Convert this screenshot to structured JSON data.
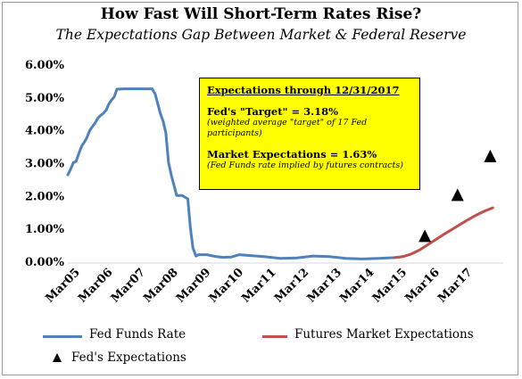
{
  "chart_data": {
    "type": "line",
    "title": "How Fast Will Short-Term Rates Rise?",
    "subtitle": "The Expectations Gap Between Market & Federal Reserve",
    "yticks": [
      "0.00%",
      "1.00%",
      "2.00%",
      "3.00%",
      "4.00%",
      "5.00%",
      "6.00%"
    ],
    "ylim": [
      0,
      6
    ],
    "xticks": [
      "Mar05",
      "Mar06",
      "Mar07",
      "Mar08",
      "Mar09",
      "Mar10",
      "Mar11",
      "Mar12",
      "Mar13",
      "Mar14",
      "Mar15",
      "Mar16",
      "Mar17"
    ],
    "xlim": [
      2005.0,
      2018.1
    ],
    "grid": false,
    "legend_position": "bottom",
    "series": [
      {
        "name": "Fed Funds Rate",
        "color": "#4f81bd",
        "x": [
          2005.0,
          2005.08,
          2005.17,
          2005.25,
          2005.33,
          2005.42,
          2005.5,
          2005.58,
          2005.67,
          2005.75,
          2005.83,
          2005.92,
          2006.0,
          2006.08,
          2006.17,
          2006.25,
          2006.33,
          2006.42,
          2006.5,
          2006.75,
          2007.0,
          2007.25,
          2007.5,
          2007.58,
          2007.67,
          2007.75,
          2007.83,
          2007.92,
          2008.0,
          2008.08,
          2008.17,
          2008.25,
          2008.33,
          2008.5,
          2008.67,
          2008.75,
          2008.83,
          2008.92,
          2009.0,
          2009.25,
          2009.5,
          2009.75,
          2010.0,
          2010.25,
          2010.5,
          2011.0,
          2011.5,
          2012.0,
          2012.5,
          2013.0,
          2013.5,
          2014.0,
          2014.5,
          2015.0
        ],
        "values": [
          2.63,
          2.79,
          3.0,
          3.04,
          3.26,
          3.5,
          3.62,
          3.76,
          3.98,
          4.1,
          4.2,
          4.36,
          4.44,
          4.5,
          4.6,
          4.78,
          4.9,
          5.0,
          5.24,
          5.25,
          5.25,
          5.25,
          5.25,
          5.25,
          5.1,
          4.8,
          4.5,
          4.25,
          3.9,
          3.0,
          2.6,
          2.3,
          2.0,
          2.0,
          1.9,
          1.0,
          0.4,
          0.16,
          0.2,
          0.2,
          0.15,
          0.12,
          0.13,
          0.2,
          0.18,
          0.14,
          0.09,
          0.1,
          0.16,
          0.14,
          0.09,
          0.07,
          0.09,
          0.11
        ]
      },
      {
        "name": "Futures Market Expectations",
        "color": "#c0504d",
        "x": [
          2015.0,
          2015.25,
          2015.5,
          2015.75,
          2016.0,
          2016.25,
          2016.5,
          2016.75,
          2017.0,
          2017.25,
          2017.5,
          2017.75,
          2018.0
        ],
        "values": [
          0.11,
          0.14,
          0.22,
          0.34,
          0.5,
          0.66,
          0.82,
          0.97,
          1.12,
          1.27,
          1.41,
          1.53,
          1.63
        ]
      },
      {
        "name": "Fed's Expectations",
        "color": "#000000",
        "marker": "triangle",
        "x": [
          2015.92,
          2016.92,
          2017.92
        ],
        "values": [
          0.75,
          2.0,
          3.18
        ]
      }
    ],
    "annotation": {
      "heading": "Expectations through 12/31/2017",
      "fed_target": "Fed's \"Target\" = 3.18%",
      "fed_note": "(weighted average \"target\" of 17 Fed participants)",
      "market": "Market Expectations = 1.63%",
      "market_note": "(Fed Funds rate implied by futures contracts)"
    }
  },
  "legend": {
    "fed_funds": "Fed Funds Rate",
    "futures": "Futures Market Expectations",
    "fed_expect": "Fed's Expectations"
  }
}
